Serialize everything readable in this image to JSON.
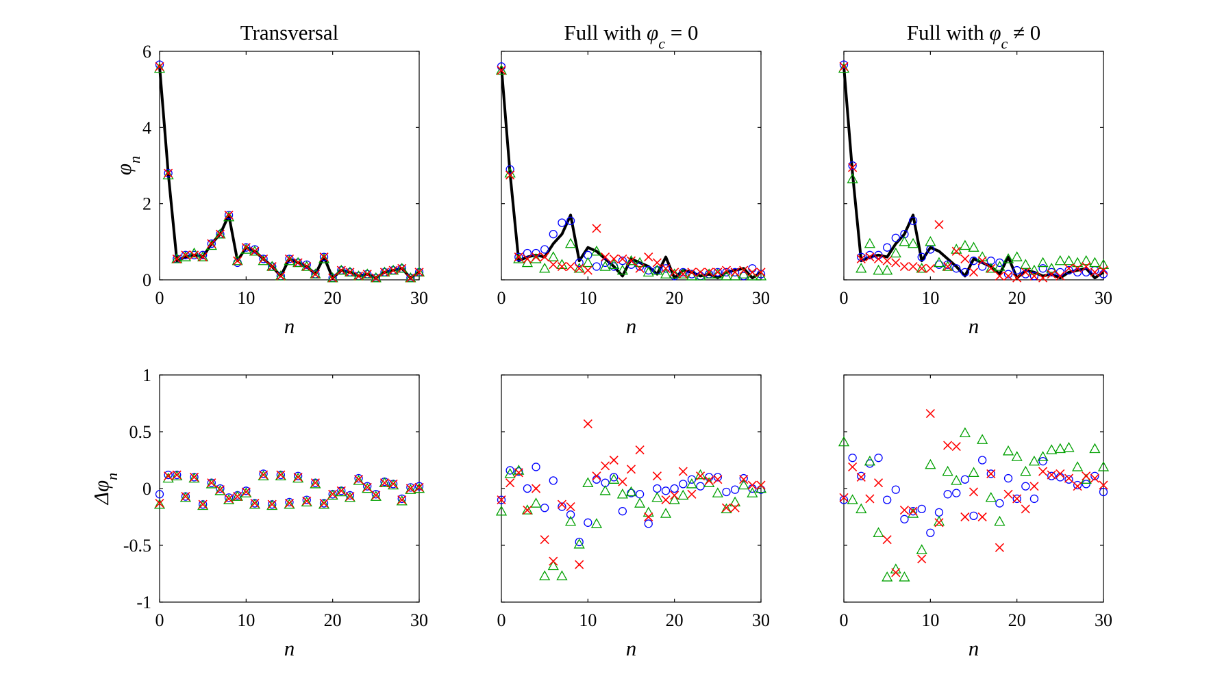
{
  "chart_data": [
    {
      "type": "line",
      "title": "Transversal",
      "title_suffix": "",
      "xlabel": "n",
      "ylabel": "φn",
      "xlim": [
        0,
        30
      ],
      "ylim": [
        0,
        6
      ],
      "xticks": [
        "0",
        "10",
        "20",
        "30"
      ],
      "yticks": [
        "0",
        "2",
        "4",
        "6"
      ],
      "show_yticklabels": true,
      "grid": false,
      "line": [
        5.6,
        2.8,
        0.5,
        0.6,
        0.65,
        0.6,
        0.95,
        1.2,
        1.7,
        0.5,
        0.85,
        0.75,
        0.55,
        0.35,
        0.1,
        0.55,
        0.45,
        0.35,
        0.15,
        0.6,
        0.05,
        0.25,
        0.2,
        0.1,
        0.15,
        0.05,
        0.2,
        0.25,
        0.3,
        0.05,
        0.2
      ],
      "circles": [
        5.65,
        2.8,
        0.55,
        0.65,
        0.65,
        0.65,
        0.95,
        1.2,
        1.7,
        0.45,
        0.85,
        0.8,
        0.55,
        0.35,
        0.1,
        0.55,
        0.45,
        0.4,
        0.15,
        0.6,
        0.05,
        0.25,
        0.2,
        0.1,
        0.15,
        0.05,
        0.2,
        0.25,
        0.3,
        0.05,
        0.2
      ],
      "triangles": [
        5.55,
        2.75,
        0.55,
        0.6,
        0.7,
        0.6,
        0.9,
        1.2,
        1.65,
        0.5,
        0.8,
        0.75,
        0.5,
        0.35,
        0.1,
        0.5,
        0.45,
        0.35,
        0.15,
        0.55,
        0.05,
        0.25,
        0.2,
        0.1,
        0.15,
        0.05,
        0.2,
        0.25,
        0.3,
        0.05,
        0.2
      ],
      "crosses": [
        5.6,
        2.8,
        0.55,
        0.65,
        0.65,
        0.6,
        0.95,
        1.2,
        1.7,
        0.5,
        0.85,
        0.75,
        0.55,
        0.35,
        0.1,
        0.55,
        0.45,
        0.35,
        0.15,
        0.6,
        0.05,
        0.25,
        0.2,
        0.1,
        0.15,
        0.05,
        0.2,
        0.25,
        0.3,
        0.05,
        0.2
      ]
    },
    {
      "type": "line",
      "title": "Full with ",
      "title_suffix": "φc = 0",
      "xlabel": "n",
      "ylabel": "",
      "xlim": [
        0,
        30
      ],
      "ylim": [
        0,
        6
      ],
      "xticks": [
        "0",
        "10",
        "20",
        "30"
      ],
      "yticks": [],
      "show_yticklabels": false,
      "grid": false,
      "line": [
        5.6,
        2.8,
        0.5,
        0.6,
        0.65,
        0.6,
        0.95,
        1.2,
        1.7,
        0.5,
        0.85,
        0.75,
        0.55,
        0.35,
        0.1,
        0.55,
        0.45,
        0.35,
        0.15,
        0.6,
        0.05,
        0.25,
        0.2,
        0.1,
        0.15,
        0.05,
        0.2,
        0.25,
        0.3,
        0.05,
        0.2
      ],
      "circles": [
        5.6,
        2.9,
        0.6,
        0.7,
        0.7,
        0.8,
        1.2,
        1.5,
        1.55,
        0.45,
        0.65,
        0.35,
        0.45,
        0.35,
        0.5,
        0.4,
        0.35,
        0.25,
        0.25,
        0.3,
        0.1,
        0.2,
        0.15,
        0.1,
        0.15,
        0.2,
        0.2,
        0.2,
        0.1,
        0.3,
        0.15
      ],
      "triangles": [
        5.5,
        2.8,
        0.55,
        0.45,
        0.55,
        0.3,
        0.6,
        0.4,
        0.95,
        0.3,
        0.45,
        0.75,
        0.35,
        0.4,
        0.25,
        0.5,
        0.45,
        0.2,
        0.25,
        0.15,
        0.15,
        0.15,
        0.1,
        0.1,
        0.15,
        0.15,
        0.1,
        0.1,
        0.15,
        0.1,
        0.1
      ],
      "crosses": [
        5.5,
        2.75,
        0.6,
        0.55,
        0.6,
        0.6,
        0.4,
        0.35,
        0.35,
        0.3,
        0.25,
        1.35,
        0.6,
        0.55,
        0.55,
        0.5,
        0.3,
        0.6,
        0.45,
        0.3,
        0.2,
        0.15,
        0.2,
        0.2,
        0.2,
        0.2,
        0.25,
        0.2,
        0.25,
        0.2,
        0.2
      ]
    },
    {
      "type": "line",
      "title": "Full with ",
      "title_suffix": "φc ≠ 0",
      "xlabel": "n",
      "ylabel": "",
      "xlim": [
        0,
        30
      ],
      "ylim": [
        0,
        6
      ],
      "xticks": [
        "0",
        "10",
        "20",
        "30"
      ],
      "yticks": [],
      "show_yticklabels": false,
      "grid": false,
      "line": [
        5.6,
        2.8,
        0.5,
        0.6,
        0.65,
        0.6,
        0.95,
        1.2,
        1.7,
        0.5,
        0.85,
        0.75,
        0.55,
        0.35,
        0.1,
        0.55,
        0.45,
        0.35,
        0.15,
        0.6,
        0.05,
        0.25,
        0.2,
        0.1,
        0.15,
        0.05,
        0.2,
        0.25,
        0.3,
        0.05,
        0.2
      ],
      "circles": [
        5.65,
        3.0,
        0.6,
        0.65,
        0.65,
        0.85,
        1.1,
        1.2,
        1.55,
        0.6,
        0.8,
        0.4,
        0.4,
        0.3,
        0.2,
        0.5,
        0.35,
        0.5,
        0.45,
        0.15,
        0.25,
        0.15,
        0.1,
        0.3,
        0.2,
        0.2,
        0.25,
        0.2,
        0.2,
        0.25,
        0.15
      ],
      "triangles": [
        5.55,
        2.65,
        0.3,
        0.95,
        0.25,
        0.25,
        0.7,
        1.0,
        0.95,
        0.3,
        1.0,
        0.45,
        0.35,
        0.8,
        0.9,
        0.85,
        0.6,
        0.3,
        0.35,
        0.55,
        0.6,
        0.4,
        0.25,
        0.45,
        0.3,
        0.5,
        0.5,
        0.45,
        0.5,
        0.45,
        0.4
      ],
      "crosses": [
        5.6,
        2.95,
        0.55,
        0.6,
        0.55,
        0.5,
        0.45,
        0.35,
        0.35,
        0.3,
        0.3,
        1.45,
        0.35,
        0.75,
        0.55,
        0.2,
        0.5,
        0.3,
        0.1,
        0.1,
        0.05,
        0.2,
        0.1,
        0.05,
        0.15,
        0.1,
        0.3,
        0.3,
        0.35,
        0.2,
        0.25
      ]
    },
    {
      "type": "scatter",
      "title": "",
      "title_suffix": "",
      "xlabel": "n",
      "ylabel": "Δφn",
      "xlim": [
        0,
        30
      ],
      "ylim": [
        -1,
        1
      ],
      "xticks": [
        "0",
        "10",
        "20",
        "30"
      ],
      "yticks": [
        "-1",
        "-0.5",
        "0",
        "0.5",
        "1"
      ],
      "show_yticklabels": true,
      "grid": false,
      "circles": [
        -0.05,
        0.12,
        0.12,
        -0.07,
        0.1,
        -0.14,
        0.05,
        0.0,
        -0.08,
        -0.06,
        -0.02,
        -0.13,
        0.13,
        -0.14,
        0.12,
        -0.12,
        0.11,
        -0.1,
        0.05,
        -0.13,
        -0.05,
        -0.02,
        -0.06,
        0.09,
        0.02,
        -0.05,
        0.06,
        0.04,
        -0.09,
        0.01,
        0.02
      ],
      "triangles": [
        -0.14,
        0.09,
        0.11,
        -0.08,
        0.09,
        -0.15,
        0.04,
        -0.02,
        -0.1,
        -0.07,
        -0.04,
        -0.14,
        0.11,
        -0.15,
        0.11,
        -0.14,
        0.09,
        -0.12,
        0.04,
        -0.14,
        -0.06,
        -0.03,
        -0.08,
        0.07,
        0.0,
        -0.07,
        0.05,
        0.03,
        -0.11,
        -0.01,
        0.0
      ],
      "crosses": [
        -0.13,
        0.11,
        0.12,
        -0.07,
        0.1,
        -0.14,
        0.05,
        -0.01,
        -0.09,
        -0.07,
        -0.03,
        -0.13,
        0.12,
        -0.14,
        0.12,
        -0.13,
        0.1,
        -0.11,
        0.05,
        -0.13,
        -0.05,
        -0.02,
        -0.07,
        0.08,
        0.01,
        -0.06,
        0.05,
        0.04,
        -0.1,
        0.0,
        0.01
      ]
    },
    {
      "type": "scatter",
      "title": "",
      "title_suffix": "",
      "xlabel": "n",
      "ylabel": "",
      "xlim": [
        0,
        30
      ],
      "ylim": [
        -1,
        1
      ],
      "xticks": [
        "0",
        "10",
        "20",
        "30"
      ],
      "yticks": [],
      "show_yticklabels": false,
      "grid": false,
      "circles": [
        -0.1,
        0.16,
        0.15,
        0.0,
        0.19,
        -0.17,
        0.07,
        -0.16,
        -0.23,
        -0.47,
        -0.3,
        0.08,
        0.05,
        0.1,
        -0.2,
        -0.04,
        -0.05,
        -0.31,
        0.0,
        -0.02,
        0.0,
        0.04,
        0.08,
        0.02,
        0.1,
        0.1,
        -0.03,
        -0.01,
        0.09,
        0.0,
        -0.01
      ],
      "triangles": [
        -0.2,
        0.13,
        0.16,
        -0.19,
        -0.13,
        -0.77,
        -0.68,
        -0.77,
        -0.29,
        -0.49,
        0.05,
        -0.31,
        -0.02,
        0.08,
        -0.05,
        -0.03,
        -0.13,
        -0.21,
        -0.08,
        -0.22,
        -0.1,
        -0.06,
        0.04,
        0.12,
        0.05,
        -0.04,
        -0.18,
        -0.12,
        0.03,
        -0.04,
        0.0
      ],
      "crosses": [
        -0.1,
        0.05,
        0.14,
        -0.19,
        0.0,
        -0.45,
        -0.64,
        -0.14,
        -0.16,
        -0.67,
        0.57,
        0.11,
        0.2,
        0.25,
        0.06,
        0.17,
        0.34,
        -0.25,
        0.11,
        -0.1,
        -0.06,
        0.15,
        -0.05,
        0.11,
        0.07,
        0.08,
        -0.17,
        -0.17,
        0.08,
        0.03,
        0.03
      ]
    },
    {
      "type": "scatter",
      "title": "",
      "title_suffix": "",
      "xlabel": "n",
      "ylabel": "",
      "xlim": [
        0,
        30
      ],
      "ylim": [
        -1,
        1
      ],
      "xticks": [
        "0",
        "10",
        "20",
        "30"
      ],
      "yticks": [],
      "show_yticklabels": false,
      "grid": false,
      "circles": [
        -0.1,
        0.27,
        0.11,
        0.22,
        0.27,
        -0.1,
        -0.01,
        -0.27,
        -0.2,
        -0.18,
        -0.39,
        -0.21,
        -0.05,
        -0.04,
        0.08,
        -0.24,
        0.25,
        0.13,
        -0.13,
        0.09,
        -0.09,
        0.02,
        -0.09,
        0.24,
        0.11,
        0.1,
        0.08,
        0.03,
        0.04,
        0.11,
        -0.03
      ],
      "triangles": [
        0.41,
        -0.1,
        -0.18,
        0.24,
        -0.39,
        -0.78,
        -0.71,
        -0.78,
        -0.22,
        -0.54,
        0.21,
        -0.29,
        0.15,
        0.07,
        0.49,
        0.14,
        0.43,
        -0.08,
        -0.29,
        0.33,
        0.28,
        0.15,
        0.24,
        0.28,
        0.34,
        0.35,
        0.36,
        0.19,
        0.08,
        0.35,
        0.19
      ],
      "crosses": [
        -0.08,
        0.19,
        0.1,
        -0.09,
        0.05,
        -0.45,
        -0.74,
        -0.19,
        -0.2,
        -0.62,
        0.66,
        -0.3,
        0.38,
        0.37,
        -0.25,
        -0.03,
        -0.25,
        0.13,
        -0.52,
        -0.05,
        -0.09,
        -0.18,
        0.02,
        0.15,
        0.12,
        0.13,
        0.09,
        0.02,
        0.11,
        0.09,
        0.03
      ]
    }
  ],
  "colors": {
    "circles": "#0000ff",
    "triangles": "#00a000",
    "crosses": "#ff0000",
    "line": "#000000"
  }
}
